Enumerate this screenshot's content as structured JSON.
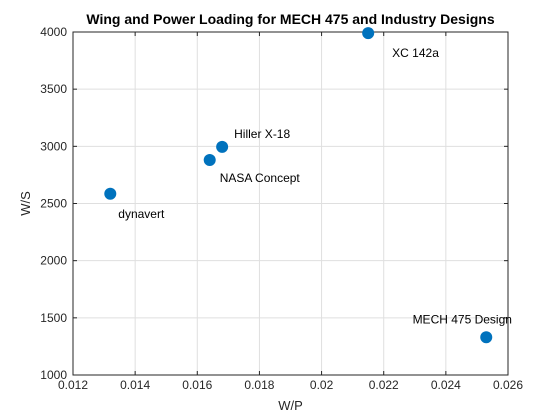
{
  "chart_data": {
    "type": "scatter",
    "title": "Wing and Power Loading for MECH 475 and Industry Designs",
    "xlabel": "W/P",
    "ylabel": "W/S",
    "xlim": [
      0.012,
      0.026
    ],
    "ylim": [
      1000,
      4000
    ],
    "xticks": [
      0.012,
      0.014,
      0.016,
      0.018,
      0.02,
      0.022,
      0.024,
      0.026
    ],
    "xtick_labels": [
      "0.012",
      "0.014",
      "0.016",
      "0.018",
      "0.02",
      "0.022",
      "0.024",
      "0.026"
    ],
    "yticks": [
      1000,
      1500,
      2000,
      2500,
      3000,
      3500,
      4000
    ],
    "ytick_labels": [
      "1000",
      "1500",
      "2000",
      "2500",
      "3000",
      "3500",
      "4000"
    ],
    "grid": true,
    "marker_color": "#0072BD",
    "points": [
      {
        "label": "dynavert",
        "x": 0.0132,
        "y": 2585
      },
      {
        "label": "NASA Concept",
        "x": 0.0164,
        "y": 2880
      },
      {
        "label": "Hiller X-18",
        "x": 0.0168,
        "y": 2995
      },
      {
        "label": "XC 142a",
        "x": 0.0215,
        "y": 3990
      },
      {
        "label": "MECH 475 Design",
        "x": 0.0253,
        "y": 1330
      }
    ]
  }
}
